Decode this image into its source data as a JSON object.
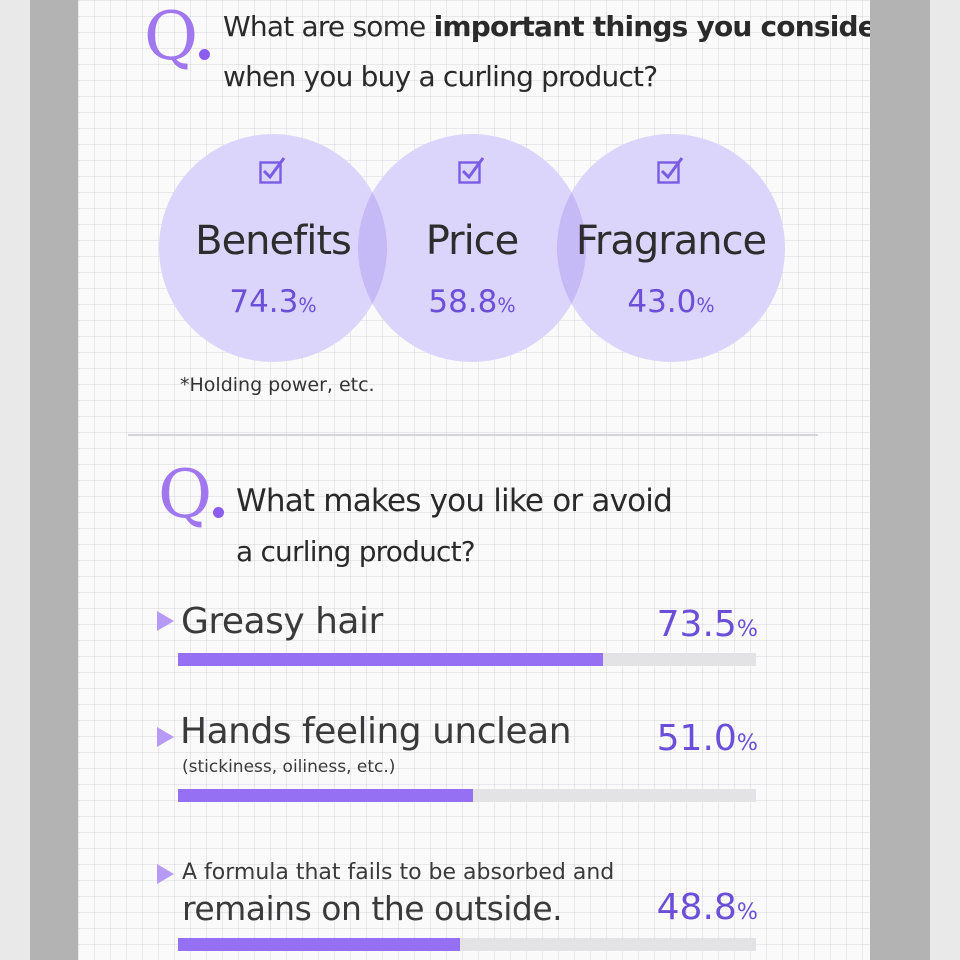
{
  "chart_data": [
    {
      "type": "bubble",
      "title": "What are some important things you consider when you buy a curling product?",
      "title_parts": [
        "What are some ",
        "important things you consider",
        "when you buy a curling product?"
      ],
      "categories": [
        "Benefits",
        "Price",
        "Fragrance"
      ],
      "values": [
        74.3,
        58.8,
        43.0
      ],
      "value_labels": [
        "74.3",
        "58.8",
        "43.0"
      ],
      "unit": "%",
      "note": "*Holding power, etc."
    },
    {
      "type": "bar",
      "orientation": "horizontal",
      "title": "What makes you like or avoid a curling product?",
      "title_lines": [
        "What makes you like or avoid",
        "a curling product?"
      ],
      "categories": [
        "Greasy hair",
        "Hands feeling unclean",
        "A formula that fails to be absorbed and remains on the outside."
      ],
      "category_lines": [
        [
          "Greasy hair"
        ],
        [
          "Hands feeling unclean",
          "(stickiness, oiliness, etc.)"
        ],
        [
          "A formula that fails to be absorbed and",
          "remains on the outside."
        ]
      ],
      "values": [
        73.5,
        51.0,
        48.8
      ],
      "value_labels": [
        "73.5",
        "51.0",
        "48.8"
      ],
      "unit": "%",
      "xlim": [
        0,
        100
      ]
    }
  ],
  "q_letter": "Q",
  "icons": {
    "check": "checkbox-checked-icon",
    "arrow": "triangle-right-icon"
  },
  "colors": {
    "accent": "#9670f2",
    "accent_dark": "#6b4fd8",
    "q_letter": "#a177f0",
    "bubble_fill": "#dcd5fb",
    "bubble_overlap": "#c5baf6",
    "bar_track": "#e3e3e6"
  }
}
